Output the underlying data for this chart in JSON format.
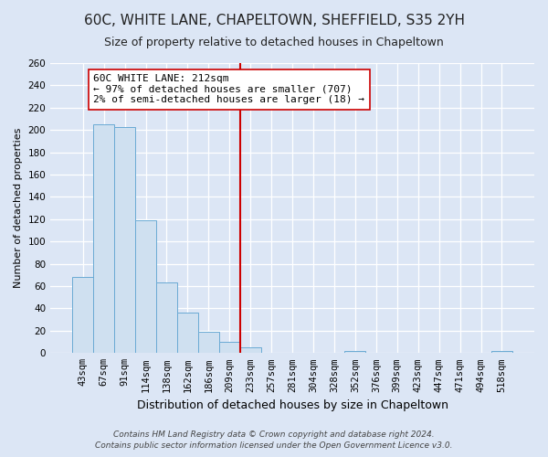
{
  "title": "60C, WHITE LANE, CHAPELTOWN, SHEFFIELD, S35 2YH",
  "subtitle": "Size of property relative to detached houses in Chapeltown",
  "xlabel": "Distribution of detached houses by size in Chapeltown",
  "ylabel": "Number of detached properties",
  "bar_labels": [
    "43sqm",
    "67sqm",
    "91sqm",
    "114sqm",
    "138sqm",
    "162sqm",
    "186sqm",
    "209sqm",
    "233sqm",
    "257sqm",
    "281sqm",
    "304sqm",
    "328sqm",
    "352sqm",
    "376sqm",
    "399sqm",
    "423sqm",
    "447sqm",
    "471sqm",
    "494sqm",
    "518sqm"
  ],
  "bar_values": [
    68,
    205,
    203,
    119,
    63,
    36,
    19,
    10,
    5,
    0,
    0,
    0,
    0,
    2,
    0,
    0,
    0,
    0,
    0,
    0,
    2
  ],
  "bar_color": "#cfe0f0",
  "bar_edge_color": "#6aaad4",
  "ylim": [
    0,
    260
  ],
  "yticks": [
    0,
    20,
    40,
    60,
    80,
    100,
    120,
    140,
    160,
    180,
    200,
    220,
    240,
    260
  ],
  "vline_color": "#cc0000",
  "annotation_line1": "60C WHITE LANE: 212sqm",
  "annotation_line2": "← 97% of detached houses are smaller (707)",
  "annotation_line3": "2% of semi-detached houses are larger (18) →",
  "annotation_box_color": "#ffffff",
  "annotation_box_edge": "#cc0000",
  "footer_line1": "Contains HM Land Registry data © Crown copyright and database right 2024.",
  "footer_line2": "Contains public sector information licensed under the Open Government Licence v3.0.",
  "bg_color": "#dce6f5",
  "plot_bg_color": "#dce6f5",
  "grid_color": "#ffffff",
  "title_fontsize": 11,
  "subtitle_fontsize": 9,
  "xlabel_fontsize": 9,
  "ylabel_fontsize": 8,
  "tick_fontsize": 7.5,
  "annot_fontsize": 8
}
